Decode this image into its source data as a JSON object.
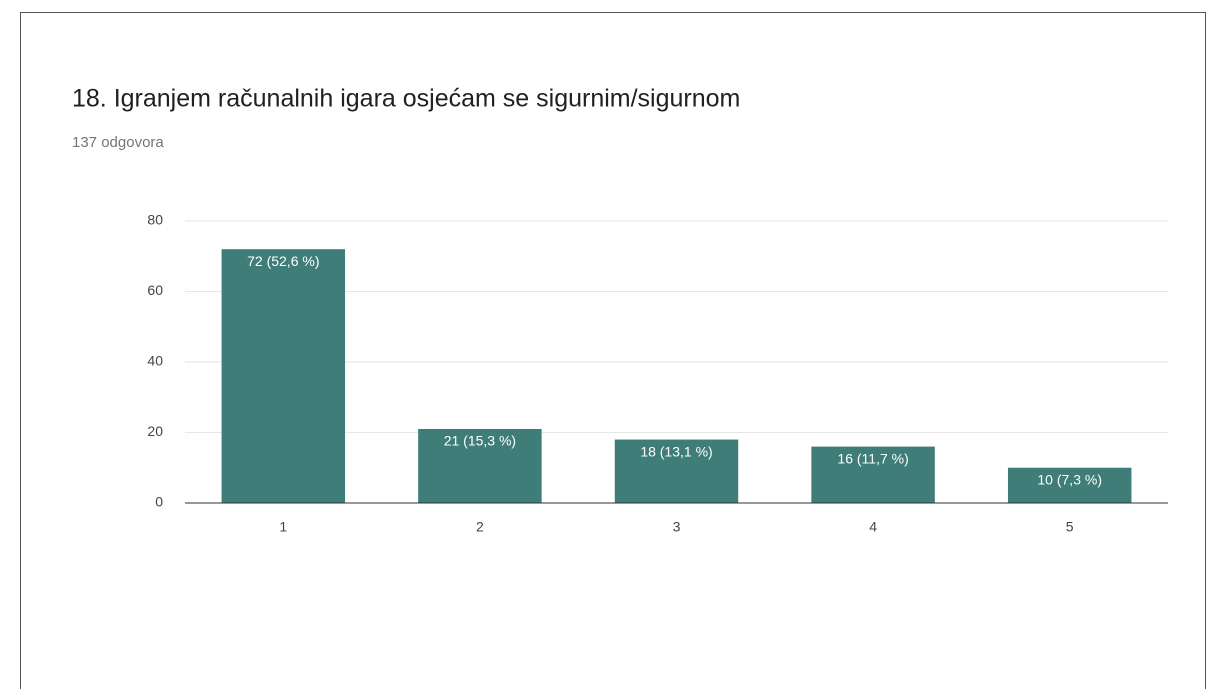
{
  "chart_data": {
    "type": "bar",
    "title": "18. Igranjem računalnih igara osjećam se sigurnim/sigurnom",
    "subtitle": "137 odgovora",
    "categories": [
      "1",
      "2",
      "3",
      "4",
      "5"
    ],
    "values": [
      72,
      21,
      18,
      16,
      10
    ],
    "value_labels": [
      "72 (52,6 %)",
      "21 (15,3 %)",
      "18 (13,1 %)",
      "16 (11,7 %)",
      "10 (7,3 %)"
    ],
    "color": "#3f7d78",
    "ylim": [
      0,
      80
    ],
    "yticks": [
      0,
      20,
      40,
      60,
      80
    ],
    "grid": true
  }
}
